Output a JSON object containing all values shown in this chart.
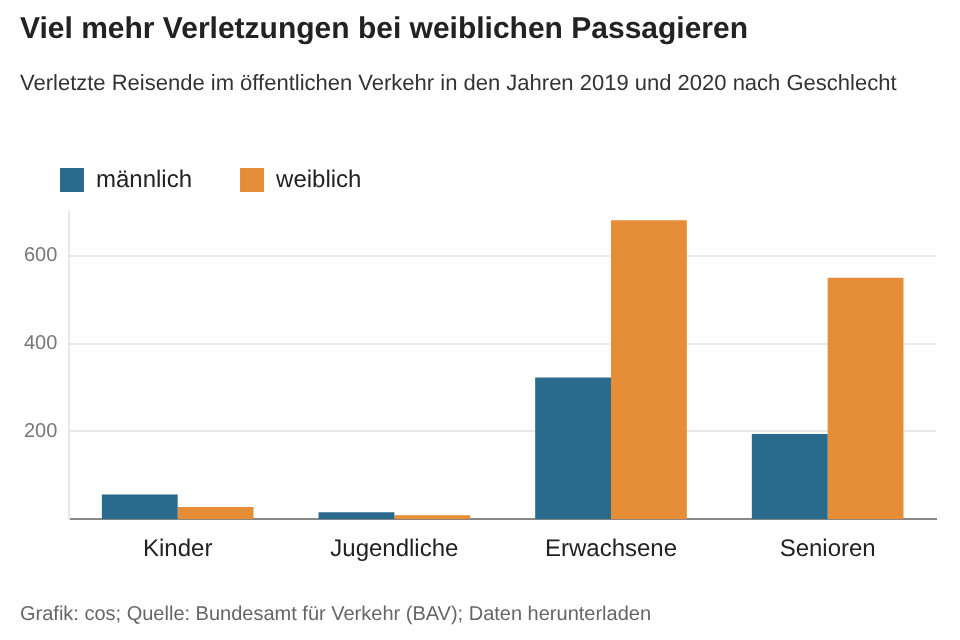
{
  "chart_data": {
    "type": "bar",
    "title": "Viel mehr Verletzungen bei weiblichen Passagieren",
    "subtitle": "Verletzte Reisende im öffentlichen Verkehr in den Jahren 2019 und 2020 nach Geschlecht",
    "categories": [
      "Kinder",
      "Jugendliche",
      "Erwachsene",
      "Senioren"
    ],
    "series": [
      {
        "name": "männlich",
        "color": "#2a6a8c",
        "values": [
          56,
          16,
          323,
          194
        ]
      },
      {
        "name": "weiblich",
        "color": "#e58e37",
        "values": [
          28,
          9,
          681,
          550
        ]
      }
    ],
    "ylim": [
      0,
      700
    ],
    "yticks": [
      200,
      400,
      600
    ],
    "grid": "y",
    "legend": "top left",
    "annotations": [
      "Grafik: cos; Quelle: Bundesamt für Verkehr (BAV); Daten herunterladen"
    ]
  }
}
